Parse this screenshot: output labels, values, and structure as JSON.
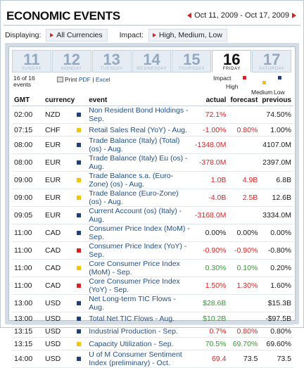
{
  "header": {
    "title": "ECONOMIC EVENTS",
    "date_range": "Oct 11, 2009 - Oct 17, 2009"
  },
  "filters": {
    "displaying_label": "Displaying:",
    "currency_value": "All Currencies",
    "impact_label": "Impact:",
    "impact_value": "High, Medium, Low"
  },
  "days": [
    {
      "num": "11",
      "name": "SUNDAY"
    },
    {
      "num": "12",
      "name": "MONDAY"
    },
    {
      "num": "13",
      "name": "TUESDAY"
    },
    {
      "num": "14",
      "name": "WEDNESDAY"
    },
    {
      "num": "15",
      "name": "THURSDAY"
    },
    {
      "num": "16",
      "name": "FRIDAY"
    },
    {
      "num": "17",
      "name": "SATURDAY"
    }
  ],
  "active_day_index": 5,
  "toolbar": {
    "count": "16 of 16 events",
    "print_label": "Print",
    "pdf_label": "PDF",
    "separator": "|",
    "excel_label": "Excel"
  },
  "impact_legend": {
    "title": "Impact",
    "high": "High",
    "medium": "Medium",
    "low": "Low",
    "colors": {
      "high": "#e02020",
      "medium": "#f5c400",
      "low": "#1f3f7a"
    }
  },
  "table": {
    "columns": [
      "GMT",
      "currency",
      "event",
      "actual",
      "forecast",
      "previous"
    ],
    "rows": [
      {
        "gmt": "02:00",
        "cur": "NZD",
        "impact": "low",
        "event": "Non Resident Bond Holdings - Sep.",
        "actual": "72.1%",
        "actual_color": "red",
        "forecast": "",
        "previous": "74.50%"
      },
      {
        "gmt": "07:15",
        "cur": "CHF",
        "impact": "medium",
        "event": "Retail Sales Real (YoY) - Aug.",
        "actual": "-1.00%",
        "actual_color": "red",
        "forecast": "0.80%",
        "forecast_color": "red",
        "previous": "1.00%"
      },
      {
        "gmt": "08:00",
        "cur": "EUR",
        "impact": "low",
        "event": "Trade Balance (Italy) (Total) (os) - Aug.",
        "actual": "-1348.0M",
        "actual_color": "red",
        "forecast": "",
        "previous": "4107.0M",
        "tall": true
      },
      {
        "gmt": "08:00",
        "cur": "EUR",
        "impact": "low",
        "event": "Trade Balance (Italy) Eu (os) - Aug.",
        "actual": "-378.0M",
        "actual_color": "red",
        "forecast": "",
        "previous": "2397.0M"
      },
      {
        "gmt": "09:00",
        "cur": "EUR",
        "impact": "medium",
        "event": "Trade Balance s.a. (Euro-Zone) (os) - Aug.",
        "actual": "1.0B",
        "actual_color": "red",
        "forecast": "4.9B",
        "forecast_color": "red",
        "previous": "6.8B"
      },
      {
        "gmt": "09:00",
        "cur": "EUR",
        "impact": "medium",
        "event": "Trade Balance (Euro-Zone) (os) - Aug.",
        "actual": "-4.0B",
        "actual_color": "red",
        "forecast": "2.5B",
        "forecast_color": "red",
        "previous": "12.6B"
      },
      {
        "gmt": "09:05",
        "cur": "EUR",
        "impact": "low",
        "event": "Current Account (os) (Italy) - Aug.",
        "actual": "-3168.0M",
        "actual_color": "red",
        "forecast": "",
        "previous": "3334.0M",
        "tall": true
      },
      {
        "gmt": "11:00",
        "cur": "CAD",
        "impact": "low",
        "event": "Consumer Price Index (MoM) - Sep.",
        "actual": "0.00%",
        "actual_color": "",
        "forecast": "0.00%",
        "forecast_color": "",
        "previous": "0.00%"
      },
      {
        "gmt": "11:00",
        "cur": "CAD",
        "impact": "high",
        "event": "Consumer Price Index (YoY) - Sep.",
        "actual": "-0.90%",
        "actual_color": "red",
        "forecast": "-0.90%",
        "forecast_color": "red",
        "previous": "-0.80%"
      },
      {
        "gmt": "11:00",
        "cur": "CAD",
        "impact": "medium",
        "event": "Core Consumer Price Index (MoM) - Sep.",
        "actual": "0.30%",
        "actual_color": "green",
        "forecast": "0.10%",
        "forecast_color": "green",
        "previous": "0.20%"
      },
      {
        "gmt": "11:00",
        "cur": "CAD",
        "impact": "high",
        "event": "Core Consumer Price Index (YoY) - Sep.",
        "actual": "1.50%",
        "actual_color": "red",
        "forecast": "1.30%",
        "forecast_color": "red",
        "previous": "1.60%"
      },
      {
        "gmt": "13:00",
        "cur": "USD",
        "impact": "low",
        "event": "Net Long-term TIC Flows - Aug.",
        "actual": "$28.6B",
        "actual_color": "green",
        "forecast": "",
        "previous": "$15.3B"
      },
      {
        "gmt": "13:00",
        "cur": "USD",
        "impact": "low",
        "event": "Total Net TIC Flows - Aug.",
        "actual": "$10.2B",
        "actual_color": "green",
        "forecast": "",
        "previous": "-$97.5B"
      },
      {
        "gmt": "13:15",
        "cur": "USD",
        "impact": "low",
        "event": "Industrial Production - Sep.",
        "actual": "0.7%",
        "actual_color": "red",
        "forecast": "0.80%",
        "forecast_color": "red",
        "previous": "0.80%"
      },
      {
        "gmt": "13:15",
        "cur": "USD",
        "impact": "medium",
        "event": "Capacity Utilization - Sep.",
        "actual": "70.5%",
        "actual_color": "green",
        "forecast": "69.70%",
        "forecast_color": "green",
        "previous": "69.60%"
      },
      {
        "gmt": "14:00",
        "cur": "USD",
        "impact": "low",
        "event": "U of M Consumer Sentiment Index (preliminary) - Oct.",
        "actual": "69.4",
        "actual_color": "red",
        "forecast": "73.5",
        "forecast_color": "",
        "previous": "73.5",
        "tall": true
      }
    ]
  }
}
